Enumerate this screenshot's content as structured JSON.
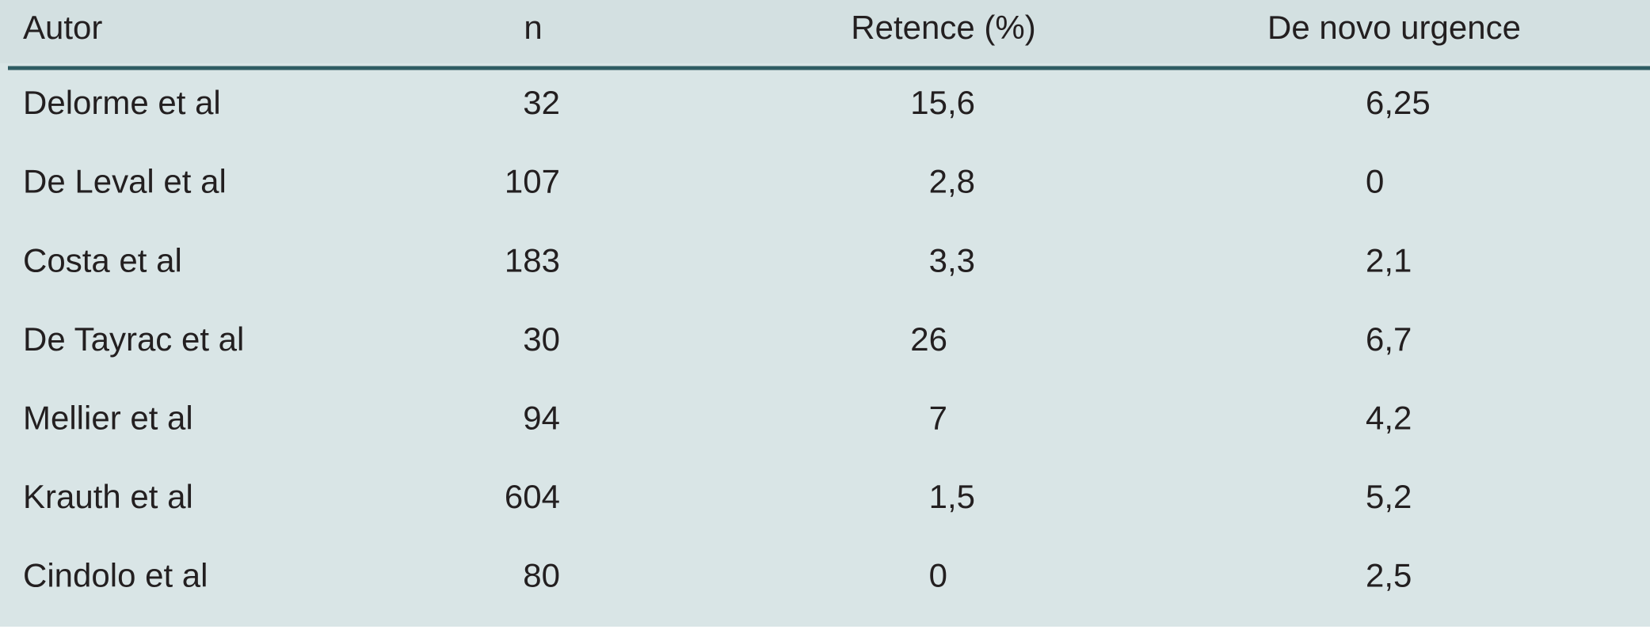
{
  "table": {
    "header": [
      "Autor",
      "n",
      "Retence (%)",
      "De novo urgence"
    ],
    "rows": [
      [
        "Delorme et al",
        "32",
        "15,6",
        "6,25"
      ],
      [
        "De Leval et al",
        "107",
        "2,8",
        "0"
      ],
      [
        "Costa et al",
        "183",
        "3,3",
        "2,1"
      ],
      [
        "De Tayrac et al",
        "30",
        "26",
        "6,7"
      ],
      [
        "Mellier et al",
        "94",
        "7",
        "4,2"
      ],
      [
        "Krauth et al",
        "604",
        "1,5",
        "5,2"
      ],
      [
        "Cindolo et al",
        "80",
        "0",
        "2,5"
      ]
    ]
  }
}
